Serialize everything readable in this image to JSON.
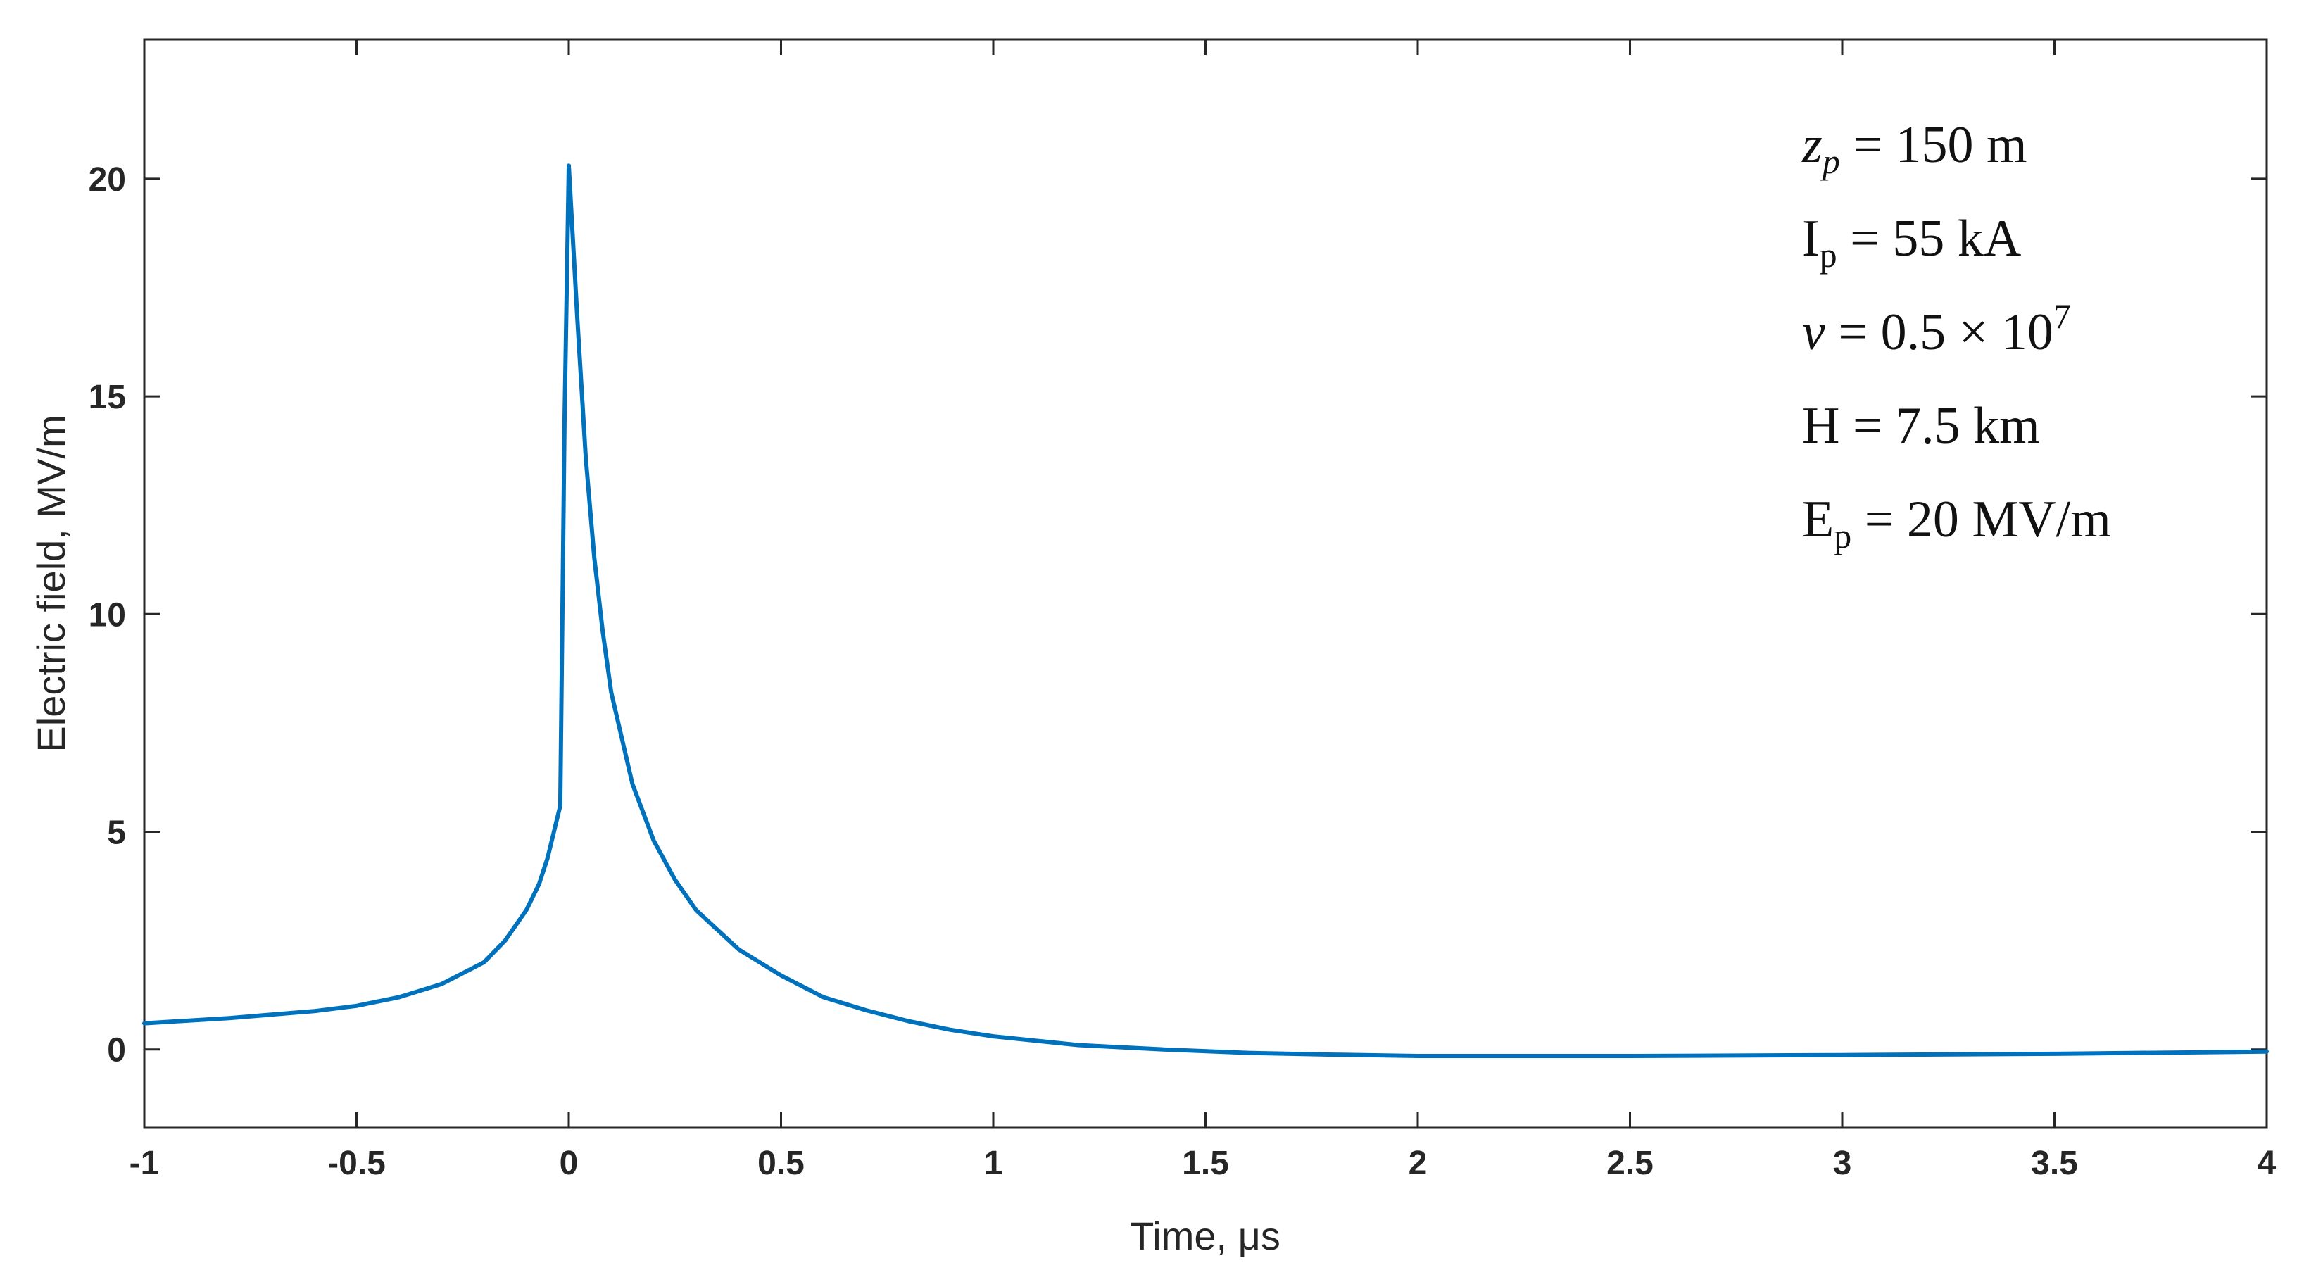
{
  "chart_data": {
    "type": "line",
    "title": "",
    "xlabel": "Time, μs",
    "ylabel": "Electric field, MV/m",
    "xlim": [
      -1,
      4
    ],
    "ylim": [
      -1.8,
      23.2
    ],
    "xticks": [
      -1,
      -0.5,
      0,
      0.5,
      1,
      1.5,
      2,
      2.5,
      3,
      3.5,
      4
    ],
    "xtick_labels": [
      "-1",
      "-0.5",
      "0",
      "0.5",
      "1",
      "1.5",
      "2",
      "2.5",
      "3",
      "3.5",
      "4"
    ],
    "yticks": [
      0,
      5,
      10,
      15,
      20
    ],
    "ytick_labels": [
      "0",
      "5",
      "10",
      "15",
      "20"
    ],
    "grid": false,
    "legend": "none",
    "line_color": "#0072BD",
    "series": [
      {
        "x": [
          -1.0,
          -0.8,
          -0.6,
          -0.5,
          -0.4,
          -0.3,
          -0.2,
          -0.15,
          -0.1,
          -0.07,
          -0.05,
          -0.03,
          -0.02,
          -0.01,
          0.0,
          0.02,
          0.04,
          0.06,
          0.08,
          0.1,
          0.15,
          0.2,
          0.25,
          0.3,
          0.4,
          0.5,
          0.6,
          0.7,
          0.8,
          0.9,
          1.0,
          1.2,
          1.4,
          1.6,
          1.8,
          2.0,
          2.2,
          2.5,
          3.0,
          3.5,
          4.0
        ],
        "y": [
          0.6,
          0.72,
          0.88,
          1.0,
          1.2,
          1.5,
          2.0,
          2.5,
          3.2,
          3.8,
          4.4,
          5.2,
          5.6,
          14.5,
          20.3,
          16.8,
          13.6,
          11.3,
          9.6,
          8.2,
          6.1,
          4.8,
          3.9,
          3.2,
          2.3,
          1.7,
          1.2,
          0.9,
          0.65,
          0.45,
          0.3,
          0.1,
          0.0,
          -0.08,
          -0.12,
          -0.15,
          -0.15,
          -0.15,
          -0.13,
          -0.1,
          -0.05
        ]
      }
    ],
    "annotations": [
      {
        "base": "z",
        "sub": "p",
        "rest": " = 150 m",
        "italic_base": true
      },
      {
        "base": "I",
        "sub": "p",
        "rest": " = 55 kA",
        "italic_base": false
      },
      {
        "base": "v",
        "sub": "",
        "rest": " = 0.5 × 10",
        "sup": "7",
        "italic_base": true
      },
      {
        "base": "H",
        "sub": "",
        "rest": " = 7.5 km",
        "italic_base": false
      },
      {
        "base": "E",
        "sub": "p",
        "rest": " = 20 MV/m",
        "italic_base": false
      }
    ]
  }
}
